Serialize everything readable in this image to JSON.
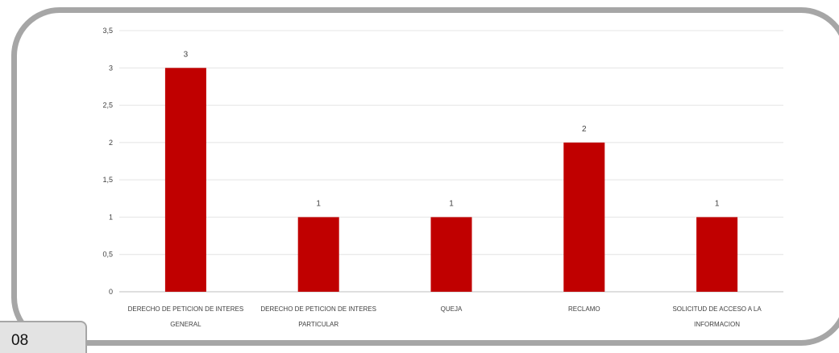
{
  "page": {
    "number": "08"
  },
  "chart_data": {
    "type": "bar",
    "categories": [
      [
        "DERECHO DE PETICION DE INTERES",
        "GENERAL"
      ],
      [
        "DERECHO DE PETICION DE INTERES",
        "PARTICULAR"
      ],
      [
        "QUEJA"
      ],
      [
        "RECLAMO"
      ],
      [
        "SOLICITUD DE ACCESO A LA",
        "INFORMACION"
      ]
    ],
    "values": [
      3,
      1,
      1,
      2,
      1
    ],
    "data_labels": [
      "3",
      "1",
      "1",
      "2",
      "1"
    ],
    "ylim": [
      0,
      3.5
    ],
    "yticks": [
      "0",
      "0,5",
      "1",
      "1,5",
      "2",
      "2,5",
      "3",
      "3,5"
    ],
    "grid": true,
    "bar_color": "#c00000",
    "title": "",
    "xlabel": "",
    "ylabel": ""
  }
}
